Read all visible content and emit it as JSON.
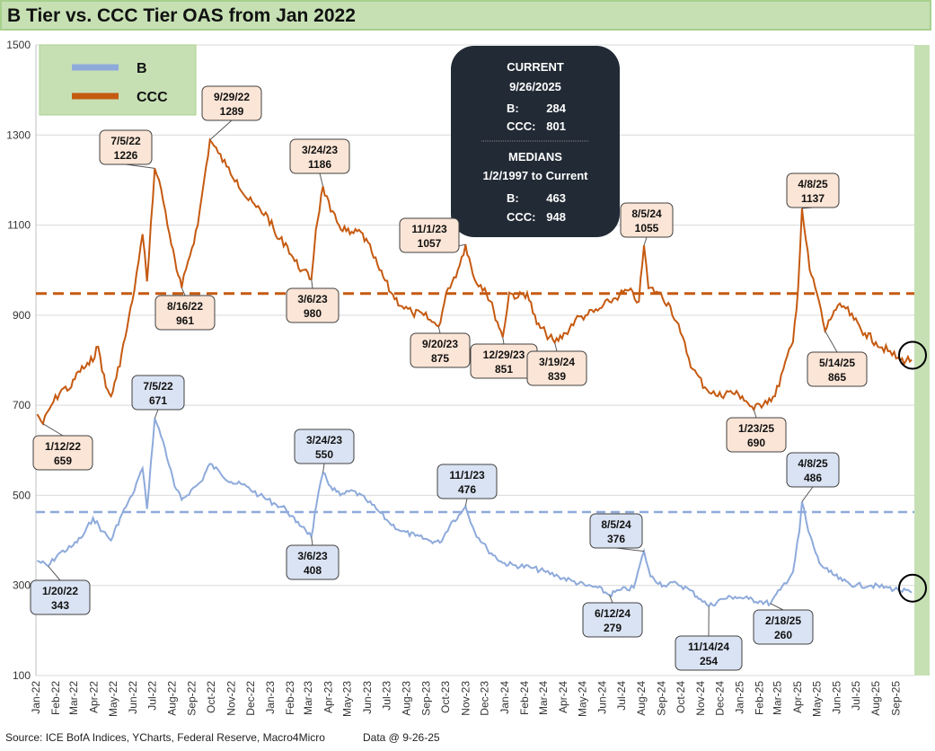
{
  "title": "B Tier vs. CCC Tier OAS from Jan 2022",
  "footer": {
    "source": "Source: ICE BofA Indices, YCharts, Federal Reserve, Macro4Micro",
    "data_date": "Data @ 9-26-25"
  },
  "colors": {
    "b_line": "#8eaadb",
    "ccc_line": "#c55a11",
    "b_label_fill": "#dae3f3",
    "ccc_label_fill": "#fbe5d6",
    "plot_bg": "#c6e0b4",
    "title_bg": "#c6e0b4",
    "info_box": "#222a35"
  },
  "legend": {
    "b": "B",
    "ccc": "CCC"
  },
  "info_box": {
    "current_title": "CURRENT",
    "current_date": "9/26/2025",
    "current_b_label": "B:",
    "current_b_value": "284",
    "current_ccc_label": "CCC:",
    "current_ccc_value": "801",
    "medians_title": "MEDIANS",
    "medians_range": "1/2/1997 to Current",
    "median_b_label": "B:",
    "median_b_value": "463",
    "median_ccc_label": "CCC:",
    "median_ccc_value": "948"
  },
  "chart_data": {
    "type": "line",
    "title": "B Tier vs. CCC Tier OAS from Jan 2022",
    "ylim": [
      100,
      1500
    ],
    "yticks": [
      100,
      300,
      500,
      700,
      900,
      1100,
      1300,
      1500
    ],
    "xlim": [
      "2022-01-01",
      "2025-09-30"
    ],
    "xtick_labels": [
      "Jan-22",
      "Feb-22",
      "Mar-22",
      "Apr-22",
      "May-22",
      "Jun-22",
      "Jul-22",
      "Aug-22",
      "Sep-22",
      "Oct-22",
      "Nov-22",
      "Dec-22",
      "Jan-23",
      "Feb-23",
      "Mar-23",
      "Apr-23",
      "May-23",
      "Jun-23",
      "Jul-23",
      "Aug-23",
      "Sep-23",
      "Oct-23",
      "Nov-23",
      "Dec-23",
      "Jan-24",
      "Feb-24",
      "Mar-24",
      "Apr-24",
      "May-24",
      "Jun-24",
      "Jul-24",
      "Aug-24",
      "Sep-24",
      "Oct-24",
      "Nov-24",
      "Dec-24",
      "Jan-25",
      "Feb-25",
      "Mar-25",
      "Apr-25",
      "May-25",
      "Jun-25",
      "Jul-25",
      "Aug-25",
      "Sep-25"
    ],
    "grid": true,
    "legend_position": "top-left",
    "medians": {
      "B": 463,
      "CCC": 948
    },
    "series": [
      {
        "name": "CCC",
        "points": [
          [
            "2022-01-03",
            680
          ],
          [
            "2022-01-12",
            659
          ],
          [
            "2022-01-25",
            700
          ],
          [
            "2022-02-10",
            735
          ],
          [
            "2022-02-25",
            740
          ],
          [
            "2022-03-08",
            775
          ],
          [
            "2022-03-25",
            790
          ],
          [
            "2022-04-08",
            830
          ],
          [
            "2022-04-20",
            740
          ],
          [
            "2022-04-28",
            720
          ],
          [
            "2022-05-06",
            760
          ],
          [
            "2022-05-20",
            850
          ],
          [
            "2022-05-31",
            930
          ],
          [
            "2022-06-10",
            1020
          ],
          [
            "2022-06-16",
            1080
          ],
          [
            "2022-06-23",
            975
          ],
          [
            "2022-07-05",
            1226
          ],
          [
            "2022-07-15",
            1180
          ],
          [
            "2022-07-28",
            1080
          ],
          [
            "2022-08-08",
            1000
          ],
          [
            "2022-08-16",
            961
          ],
          [
            "2022-08-26",
            1020
          ],
          [
            "2022-09-10",
            1100
          ],
          [
            "2022-09-20",
            1200
          ],
          [
            "2022-09-29",
            1289
          ],
          [
            "2022-10-12",
            1260
          ],
          [
            "2022-10-25",
            1230
          ],
          [
            "2022-11-10",
            1200
          ],
          [
            "2022-11-25",
            1160
          ],
          [
            "2022-12-10",
            1140
          ],
          [
            "2022-12-28",
            1120
          ],
          [
            "2023-01-12",
            1070
          ],
          [
            "2023-01-25",
            1060
          ],
          [
            "2023-02-08",
            1020
          ],
          [
            "2023-02-20",
            1000
          ],
          [
            "2023-03-06",
            980
          ],
          [
            "2023-03-13",
            1090
          ],
          [
            "2023-03-24",
            1186
          ],
          [
            "2023-04-05",
            1130
          ],
          [
            "2023-04-18",
            1100
          ],
          [
            "2023-05-05",
            1080
          ],
          [
            "2023-05-22",
            1085
          ],
          [
            "2023-06-08",
            1040
          ],
          [
            "2023-06-20",
            1000
          ],
          [
            "2023-07-08",
            950
          ],
          [
            "2023-07-25",
            920
          ],
          [
            "2023-08-10",
            905
          ],
          [
            "2023-08-28",
            900
          ],
          [
            "2023-09-10",
            885
          ],
          [
            "2023-09-20",
            875
          ],
          [
            "2023-10-05",
            960
          ],
          [
            "2023-10-20",
            1000
          ],
          [
            "2023-11-01",
            1057
          ],
          [
            "2023-11-15",
            980
          ],
          [
            "2023-12-01",
            960
          ],
          [
            "2023-12-15",
            910
          ],
          [
            "2023-12-29",
            851
          ],
          [
            "2024-01-08",
            950
          ],
          [
            "2024-01-22",
            940
          ],
          [
            "2024-02-05",
            950
          ],
          [
            "2024-02-20",
            880
          ],
          [
            "2024-03-05",
            860
          ],
          [
            "2024-03-19",
            839
          ],
          [
            "2024-04-05",
            860
          ],
          [
            "2024-04-20",
            890
          ],
          [
            "2024-05-06",
            900
          ],
          [
            "2024-05-25",
            910
          ],
          [
            "2024-06-12",
            930
          ],
          [
            "2024-06-28",
            945
          ],
          [
            "2024-07-12",
            955
          ],
          [
            "2024-07-28",
            930
          ],
          [
            "2024-08-05",
            1055
          ],
          [
            "2024-08-12",
            960
          ],
          [
            "2024-08-28",
            950
          ],
          [
            "2024-09-15",
            920
          ],
          [
            "2024-10-01",
            860
          ],
          [
            "2024-10-20",
            780
          ],
          [
            "2024-11-08",
            740
          ],
          [
            "2024-11-28",
            720
          ],
          [
            "2024-12-15",
            730
          ],
          [
            "2025-01-05",
            720
          ],
          [
            "2025-01-23",
            690
          ],
          [
            "2025-02-10",
            710
          ],
          [
            "2025-02-25",
            720
          ],
          [
            "2025-03-10",
            780
          ],
          [
            "2025-03-25",
            840
          ],
          [
            "2025-04-02",
            960
          ],
          [
            "2025-04-08",
            1137
          ],
          [
            "2025-04-20",
            1000
          ],
          [
            "2025-05-01",
            950
          ],
          [
            "2025-05-14",
            865
          ],
          [
            "2025-05-28",
            910
          ],
          [
            "2025-06-12",
            920
          ],
          [
            "2025-06-28",
            890
          ],
          [
            "2025-07-15",
            860
          ],
          [
            "2025-08-01",
            840
          ],
          [
            "2025-08-20",
            820
          ],
          [
            "2025-09-08",
            800
          ],
          [
            "2025-09-26",
            801
          ]
        ]
      },
      {
        "name": "B",
        "points": [
          [
            "2022-01-03",
            355
          ],
          [
            "2022-01-20",
            343
          ],
          [
            "2022-02-05",
            370
          ],
          [
            "2022-02-25",
            385
          ],
          [
            "2022-03-15",
            410
          ],
          [
            "2022-03-31",
            450
          ],
          [
            "2022-04-15",
            420
          ],
          [
            "2022-04-28",
            400
          ],
          [
            "2022-05-12",
            450
          ],
          [
            "2022-05-31",
            500
          ],
          [
            "2022-06-10",
            540
          ],
          [
            "2022-06-16",
            560
          ],
          [
            "2022-06-23",
            470
          ],
          [
            "2022-07-05",
            671
          ],
          [
            "2022-07-18",
            620
          ],
          [
            "2022-08-05",
            520
          ],
          [
            "2022-08-16",
            490
          ],
          [
            "2022-08-30",
            510
          ],
          [
            "2022-09-15",
            530
          ],
          [
            "2022-09-29",
            570
          ],
          [
            "2022-10-15",
            550
          ],
          [
            "2022-11-01",
            530
          ],
          [
            "2022-11-25",
            520
          ],
          [
            "2022-12-15",
            500
          ],
          [
            "2023-01-10",
            480
          ],
          [
            "2023-01-25",
            470
          ],
          [
            "2023-02-10",
            440
          ],
          [
            "2023-02-22",
            430
          ],
          [
            "2023-03-06",
            408
          ],
          [
            "2023-03-14",
            480
          ],
          [
            "2023-03-24",
            550
          ],
          [
            "2023-04-05",
            520
          ],
          [
            "2023-04-20",
            500
          ],
          [
            "2023-05-10",
            510
          ],
          [
            "2023-05-30",
            490
          ],
          [
            "2023-06-15",
            470
          ],
          [
            "2023-07-05",
            440
          ],
          [
            "2023-07-25",
            420
          ],
          [
            "2023-08-15",
            410
          ],
          [
            "2023-09-05",
            400
          ],
          [
            "2023-09-22",
            395
          ],
          [
            "2023-10-10",
            440
          ],
          [
            "2023-10-25",
            460
          ],
          [
            "2023-11-01",
            476
          ],
          [
            "2023-11-15",
            420
          ],
          [
            "2023-12-05",
            380
          ],
          [
            "2023-12-29",
            350
          ],
          [
            "2024-01-15",
            345
          ],
          [
            "2024-02-10",
            340
          ],
          [
            "2024-03-05",
            330
          ],
          [
            "2024-03-25",
            320
          ],
          [
            "2024-04-15",
            310
          ],
          [
            "2024-05-05",
            300
          ],
          [
            "2024-05-25",
            295
          ],
          [
            "2024-06-12",
            279
          ],
          [
            "2024-06-30",
            290
          ],
          [
            "2024-07-20",
            295
          ],
          [
            "2024-08-05",
            376
          ],
          [
            "2024-08-15",
            320
          ],
          [
            "2024-09-05",
            300
          ],
          [
            "2024-09-25",
            305
          ],
          [
            "2024-10-15",
            290
          ],
          [
            "2024-11-01",
            270
          ],
          [
            "2024-11-14",
            254
          ],
          [
            "2024-12-05",
            270
          ],
          [
            "2024-12-25",
            275
          ],
          [
            "2025-01-15",
            270
          ],
          [
            "2025-02-01",
            265
          ],
          [
            "2025-02-18",
            260
          ],
          [
            "2025-03-05",
            290
          ],
          [
            "2025-03-25",
            330
          ],
          [
            "2025-04-04",
            420
          ],
          [
            "2025-04-08",
            486
          ],
          [
            "2025-04-18",
            420
          ],
          [
            "2025-05-05",
            350
          ],
          [
            "2025-05-20",
            330
          ],
          [
            "2025-06-10",
            310
          ],
          [
            "2025-07-01",
            300
          ],
          [
            "2025-07-25",
            300
          ],
          [
            "2025-08-20",
            295
          ],
          [
            "2025-09-05",
            290
          ],
          [
            "2025-09-26",
            284
          ]
        ]
      }
    ],
    "annotations": [
      {
        "series": "CCC",
        "date": "9/29/22",
        "value": "1289"
      },
      {
        "series": "CCC",
        "date": "7/5/22",
        "value": "1226"
      },
      {
        "series": "CCC",
        "date": "3/24/23",
        "value": "1186"
      },
      {
        "series": "CCC",
        "date": "11/1/23",
        "value": "1057"
      },
      {
        "series": "CCC",
        "date": "8/5/24",
        "value": "1055"
      },
      {
        "series": "CCC",
        "date": "4/8/25",
        "value": "1137"
      },
      {
        "series": "CCC",
        "date": "8/16/22",
        "value": "961"
      },
      {
        "series": "CCC",
        "date": "3/6/23",
        "value": "980"
      },
      {
        "series": "CCC",
        "date": "9/20/23",
        "value": "875"
      },
      {
        "series": "CCC",
        "date": "12/29/23",
        "value": "851"
      },
      {
        "series": "CCC",
        "date": "3/19/24",
        "value": "839"
      },
      {
        "series": "CCC",
        "date": "5/14/25",
        "value": "865"
      },
      {
        "series": "CCC",
        "date": "1/12/22",
        "value": "659"
      },
      {
        "series": "CCC",
        "date": "1/23/25",
        "value": "690"
      },
      {
        "series": "B",
        "date": "7/5/22",
        "value": "671"
      },
      {
        "series": "B",
        "date": "3/24/23",
        "value": "550"
      },
      {
        "series": "B",
        "date": "11/1/23",
        "value": "476"
      },
      {
        "series": "B",
        "date": "4/8/25",
        "value": "486"
      },
      {
        "series": "B",
        "date": "8/5/24",
        "value": "376"
      },
      {
        "series": "B",
        "date": "3/6/23",
        "value": "408"
      },
      {
        "series": "B",
        "date": "1/20/22",
        "value": "343"
      },
      {
        "series": "B",
        "date": "6/12/24",
        "value": "279"
      },
      {
        "series": "B",
        "date": "11/14/24",
        "value": "254"
      },
      {
        "series": "B",
        "date": "2/18/25",
        "value": "260"
      }
    ]
  }
}
